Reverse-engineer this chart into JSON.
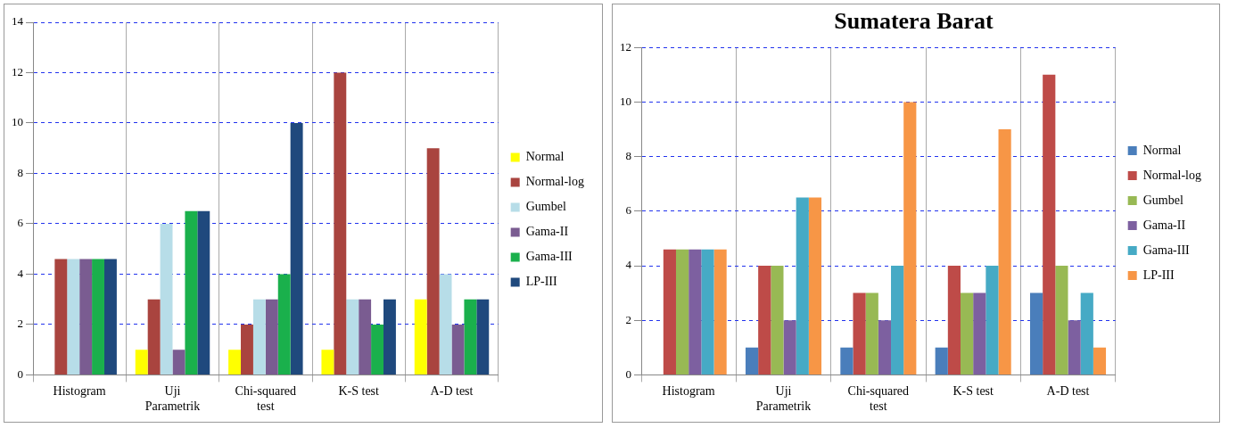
{
  "chart_data": [
    {
      "type": "bar",
      "categories": [
        "Histogram",
        "Uji Parametrik",
        "Chi-squared test",
        "K-S test",
        "A-D test"
      ],
      "series": [
        {
          "name": "Normal",
          "color": "#ffff00",
          "values": [
            0,
            1,
            1,
            1,
            3
          ]
        },
        {
          "name": "Normal-log",
          "color": "#a9443f",
          "values": [
            4.6,
            3,
            2,
            12,
            9
          ]
        },
        {
          "name": "Gumbel",
          "color": "#b7dde8",
          "values": [
            4.6,
            6,
            3,
            3,
            4
          ]
        },
        {
          "name": "Gama-II",
          "color": "#7a5c91",
          "values": [
            4.6,
            1,
            3,
            3,
            2
          ]
        },
        {
          "name": "Gama-III",
          "color": "#1ab04c",
          "values": [
            4.6,
            6.5,
            4,
            2,
            3
          ]
        },
        {
          "name": "LP-III",
          "color": "#1f497d",
          "values": [
            4.6,
            6.5,
            10,
            3,
            3
          ]
        }
      ],
      "ylim": [
        0,
        14
      ],
      "yticks": [
        0,
        2,
        4,
        6,
        8,
        10,
        12,
        14
      ],
      "grid": true,
      "legend": "right"
    },
    {
      "type": "bar",
      "title": "Sumatera Barat",
      "categories": [
        "Histogram",
        "Uji Parametrik",
        "Chi-squared test",
        "K-S test",
        "A-D test"
      ],
      "series": [
        {
          "name": "Normal",
          "color": "#4a7ebb",
          "values": [
            0,
            1,
            1,
            1,
            3
          ]
        },
        {
          "name": "Normal-log",
          "color": "#be4b48",
          "values": [
            4.6,
            4,
            3,
            4,
            11
          ]
        },
        {
          "name": "Gumbel",
          "color": "#98b954",
          "values": [
            4.6,
            4,
            3,
            3,
            4
          ]
        },
        {
          "name": "Gama-II",
          "color": "#7d60a0",
          "values": [
            4.6,
            2,
            2,
            3,
            2
          ]
        },
        {
          "name": "Gama-III",
          "color": "#46aac5",
          "values": [
            4.6,
            6.5,
            4,
            4,
            3
          ]
        },
        {
          "name": "LP-III",
          "color": "#f79646",
          "values": [
            4.6,
            6.5,
            10,
            9,
            1
          ]
        }
      ],
      "ylim": [
        0,
        12
      ],
      "yticks": [
        0,
        2,
        4,
        6,
        8,
        10,
        12
      ],
      "grid": true,
      "legend": "right"
    }
  ]
}
